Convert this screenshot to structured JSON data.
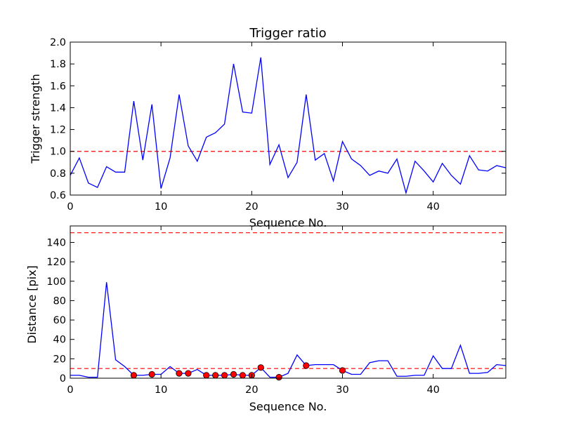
{
  "chart_data": [
    {
      "type": "line",
      "title": "Trigger ratio",
      "xlabel": "Sequence No.",
      "ylabel": "Trigger strength",
      "xlim": [
        0,
        48
      ],
      "ylim": [
        0.6,
        2.0
      ],
      "xticks": [
        "0",
        "10",
        "20",
        "30",
        "40"
      ],
      "yticks": [
        "0.6",
        "0.8",
        "1.0",
        "1.2",
        "1.4",
        "1.6",
        "1.8",
        "2.0"
      ],
      "grid": false,
      "series_color": "#0000ff",
      "threshold_color": "#ff0000",
      "thresholds": [
        1.0
      ],
      "x": [
        0,
        1,
        2,
        3,
        4,
        5,
        6,
        7,
        8,
        9,
        10,
        11,
        12,
        13,
        14,
        15,
        16,
        17,
        18,
        19,
        20,
        21,
        22,
        23,
        24,
        25,
        26,
        27,
        28,
        29,
        30,
        31,
        32,
        33,
        34,
        35,
        36,
        37,
        38,
        39,
        40,
        41,
        42,
        43,
        44,
        45,
        46,
        47,
        48
      ],
      "y": [
        0.78,
        0.94,
        0.71,
        0.67,
        0.86,
        0.81,
        0.81,
        1.46,
        0.92,
        1.43,
        0.66,
        0.94,
        1.52,
        1.05,
        0.91,
        1.13,
        1.17,
        1.25,
        1.8,
        1.36,
        1.35,
        1.86,
        0.88,
        1.06,
        0.76,
        0.9,
        1.52,
        0.92,
        0.98,
        0.73,
        1.09,
        0.93,
        0.87,
        0.78,
        0.82,
        0.8,
        0.93,
        0.62,
        0.91,
        0.82,
        0.72,
        0.89,
        0.78,
        0.7,
        0.96,
        0.83,
        0.82,
        0.87,
        0.85
      ]
    },
    {
      "type": "line",
      "title": "",
      "xlabel": "Sequence No.",
      "ylabel": "Distance [pix]",
      "xlim": [
        0,
        48
      ],
      "ylim": [
        0,
        157
      ],
      "xticks": [
        "0",
        "10",
        "20",
        "30",
        "40"
      ],
      "yticks": [
        "0",
        "20",
        "40",
        "60",
        "80",
        "100",
        "120",
        "140"
      ],
      "grid": false,
      "series_color": "#0000ff",
      "marker_color": "#ff0000",
      "threshold_color": "#ff0000",
      "thresholds": [
        10,
        150
      ],
      "x": [
        0,
        1,
        2,
        3,
        4,
        5,
        6,
        7,
        8,
        9,
        10,
        11,
        12,
        13,
        14,
        15,
        16,
        17,
        18,
        19,
        20,
        21,
        22,
        23,
        24,
        25,
        26,
        27,
        28,
        29,
        30,
        31,
        32,
        33,
        34,
        35,
        36,
        37,
        38,
        39,
        40,
        41,
        42,
        43,
        44,
        45,
        46,
        47,
        48
      ],
      "y": [
        3,
        3,
        1,
        1,
        99,
        19,
        12,
        3,
        3,
        4,
        4,
        12,
        5,
        5,
        9,
        3,
        3,
        3,
        4,
        3,
        3,
        11,
        1,
        1,
        5,
        24,
        13,
        14,
        14,
        14,
        8,
        4,
        4,
        16,
        18,
        18,
        2,
        2,
        3,
        3,
        23,
        10,
        10,
        34,
        5,
        5,
        6,
        14,
        13
      ],
      "markers": {
        "x": [
          7,
          9,
          12,
          13,
          15,
          16,
          17,
          18,
          19,
          20,
          21,
          23,
          26,
          30
        ],
        "y": [
          3,
          4,
          5,
          5,
          3,
          3,
          3,
          4,
          3,
          3,
          11,
          1,
          13,
          8
        ]
      }
    }
  ]
}
